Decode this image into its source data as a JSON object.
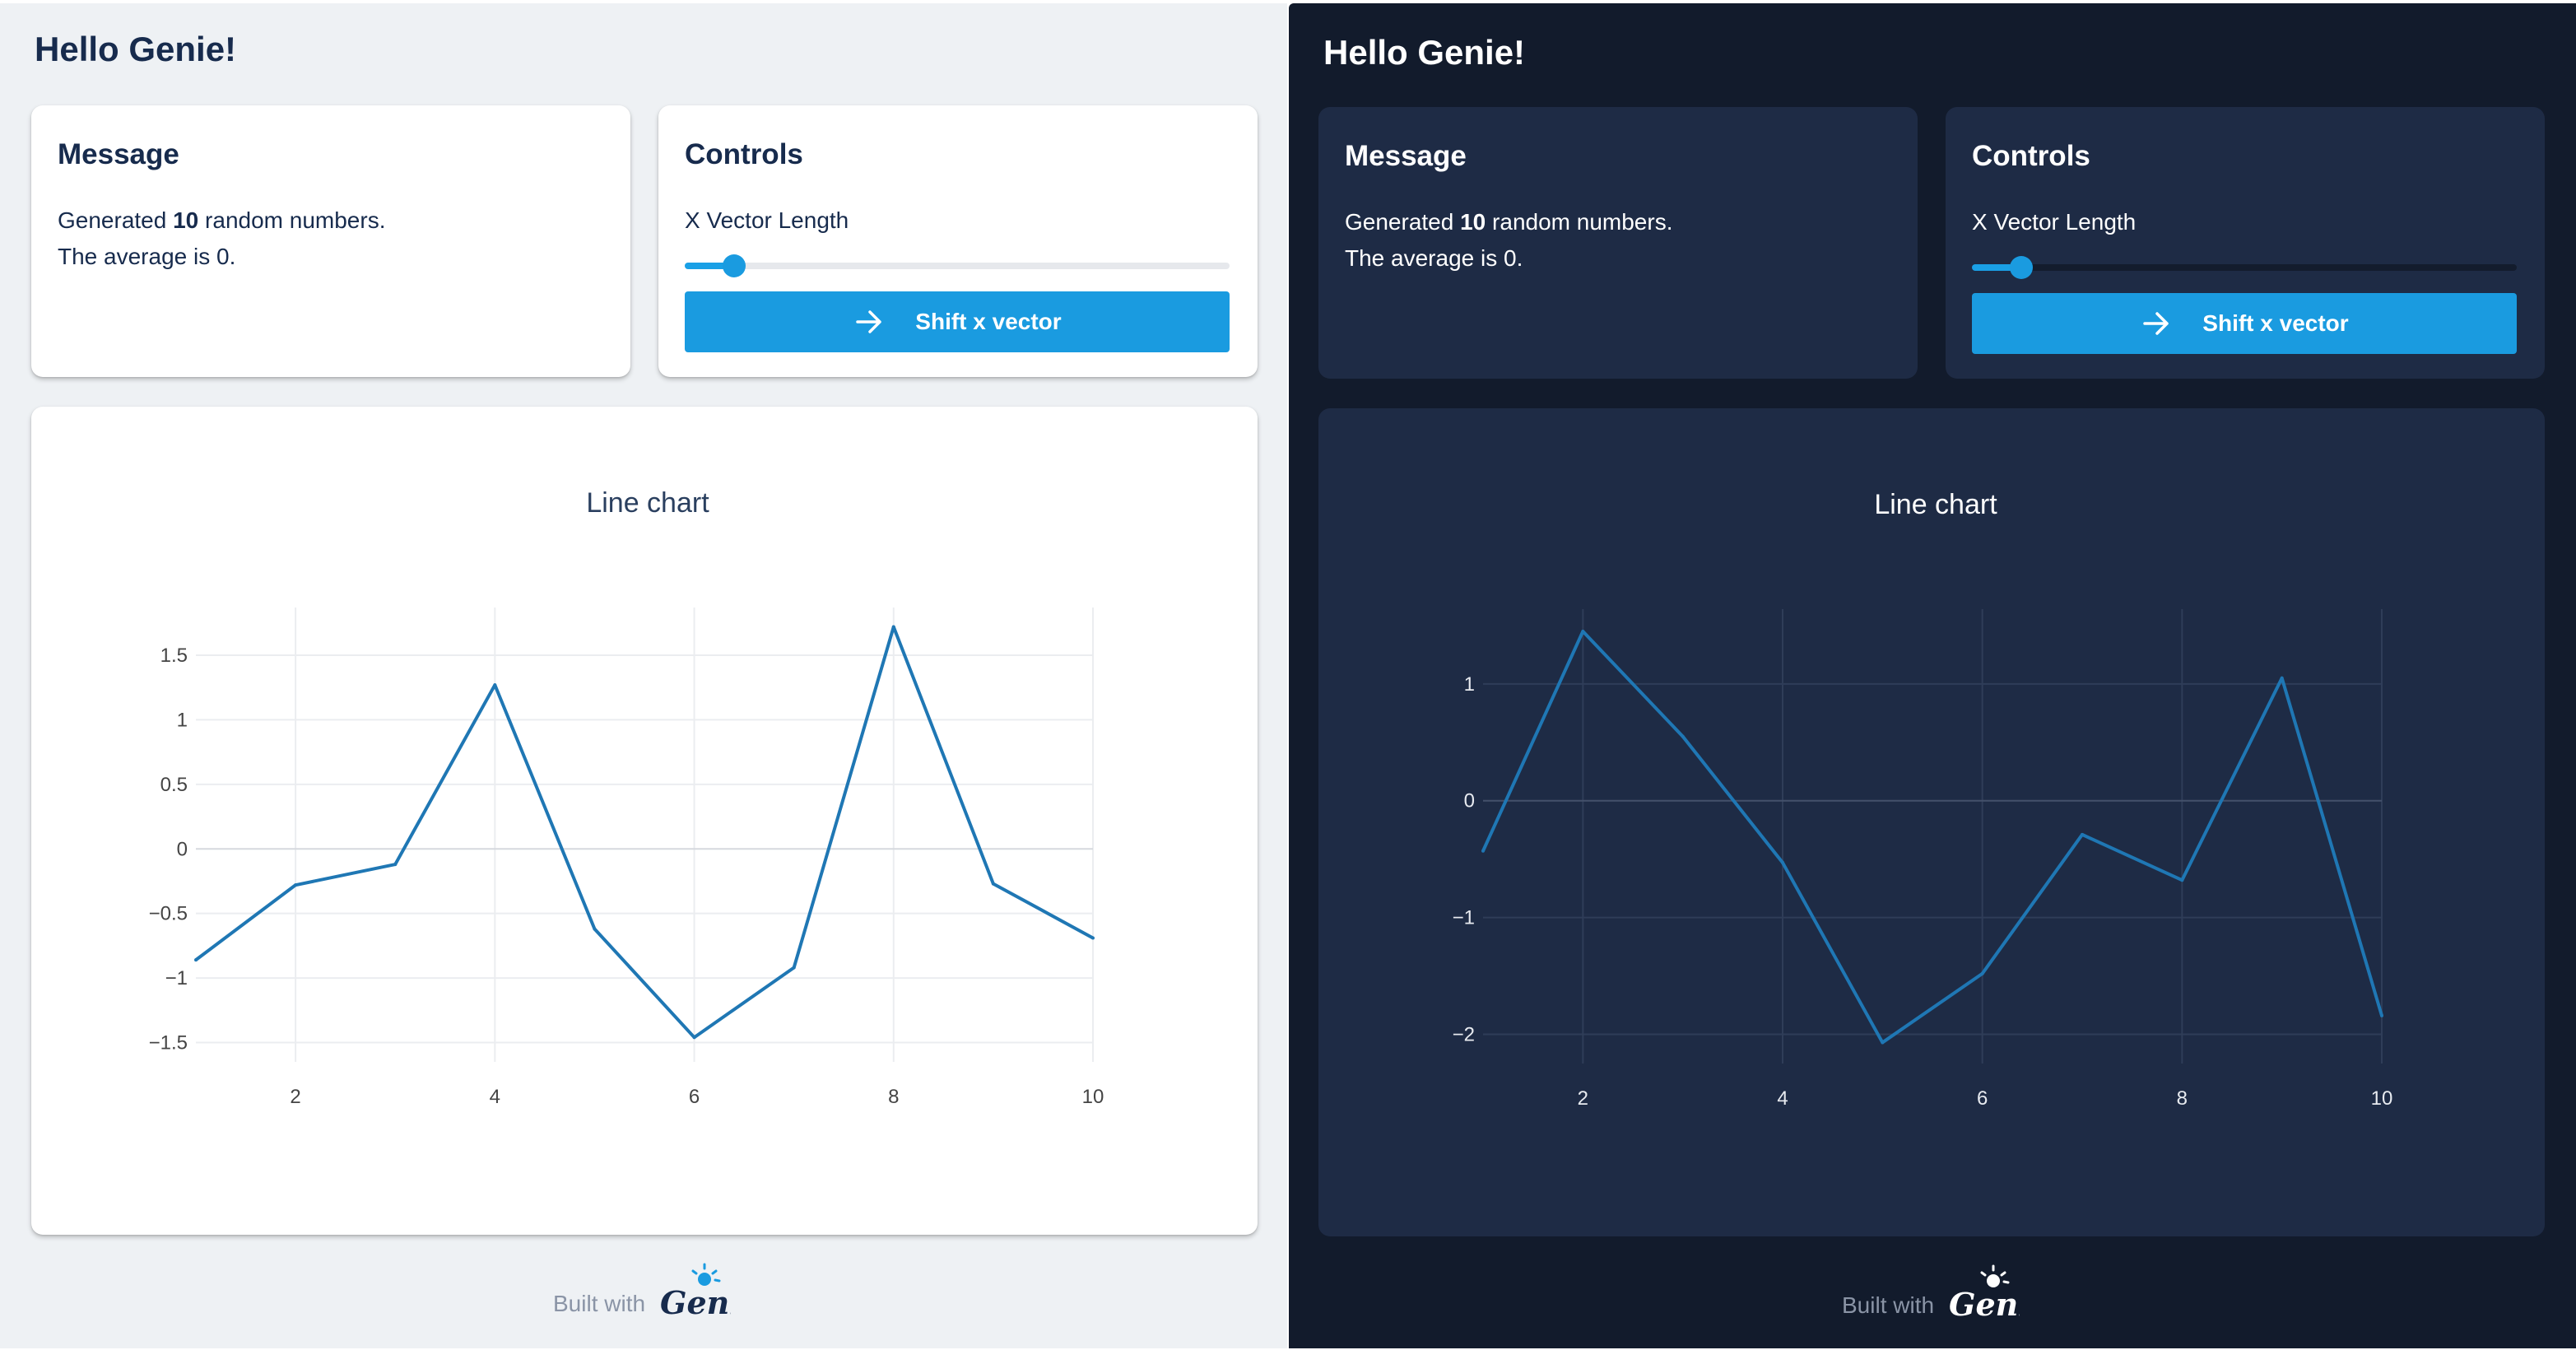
{
  "light": {
    "app_title": "Hello Genie!",
    "message": {
      "title": "Message",
      "line1_prefix": "Generated ",
      "count": "10",
      "line1_suffix": " random numbers.",
      "line2": "The average is 0."
    },
    "controls": {
      "title": "Controls",
      "slider_label": "X Vector Length",
      "slider_value_fraction": 0.09,
      "button_label": "Shift x vector"
    },
    "footer": {
      "built_with": "Built with",
      "logo_text": "Genie"
    }
  },
  "dark": {
    "app_title": "Hello Genie!",
    "message": {
      "title": "Message",
      "line1_prefix": "Generated ",
      "count": "10",
      "line1_suffix": " random numbers.",
      "line2": "The average is 0."
    },
    "controls": {
      "title": "Controls",
      "slider_label": "X Vector Length",
      "slider_value_fraction": 0.09,
      "button_label": "Shift x vector"
    },
    "footer": {
      "built_with": "Built with",
      "logo_text": "Genie"
    }
  },
  "colors": {
    "accent": "#1a9be0",
    "line": "#1f77b4",
    "light_bg": "#eef1f4",
    "dark_bg": "#121b2c",
    "dark_card": "#1e2b45"
  },
  "chart_data": [
    {
      "type": "line",
      "title": "Line chart",
      "x": [
        1,
        2,
        3,
        4,
        5,
        6,
        7,
        8,
        9,
        10
      ],
      "series": [
        {
          "values": [
            -0.86,
            -0.28,
            -0.12,
            1.27,
            -0.62,
            -1.46,
            -0.92,
            1.72,
            -0.27,
            -0.69
          ]
        }
      ],
      "xlim": [
        1,
        10
      ],
      "ylim": [
        -1.65,
        1.87
      ],
      "xticks": [
        2,
        4,
        6,
        8,
        10
      ],
      "yticks": [
        -1.5,
        -1,
        -0.5,
        0,
        0.5,
        1,
        1.5
      ],
      "ytick_labels": [
        "−1.5",
        "−1",
        "−0.5",
        "0",
        "0.5",
        "1",
        "1.5"
      ],
      "xtick_labels": [
        "2",
        "4",
        "6",
        "8",
        "10"
      ],
      "grid": true
    },
    {
      "type": "line",
      "title": "Line chart",
      "x": [
        1,
        2,
        3,
        4,
        5,
        6,
        7,
        8,
        9,
        10
      ],
      "series": [
        {
          "values": [
            -0.43,
            1.45,
            0.55,
            -0.53,
            -2.07,
            -1.48,
            -0.29,
            -0.68,
            1.05,
            -1.84
          ]
        }
      ],
      "xlim": [
        1,
        10
      ],
      "ylim": [
        -2.25,
        1.64
      ],
      "xticks": [
        2,
        4,
        6,
        8,
        10
      ],
      "yticks": [
        -2,
        -1,
        0,
        1
      ],
      "ytick_labels": [
        "−2",
        "−1",
        "0",
        "1"
      ],
      "xtick_labels": [
        "2",
        "4",
        "6",
        "8",
        "10"
      ],
      "grid": true
    }
  ]
}
